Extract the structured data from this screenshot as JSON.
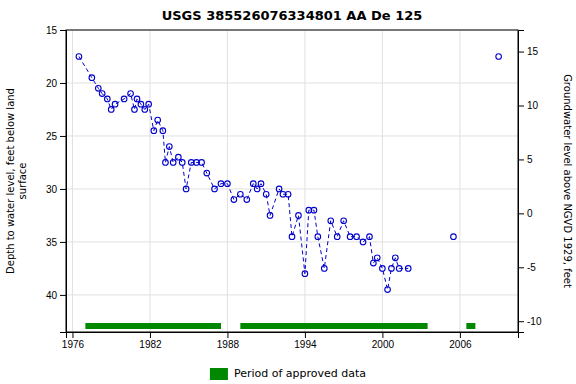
{
  "chart_data": {
    "type": "line",
    "title": "USGS 385526076334801 AA De 125",
    "ylabel": "Depth to water level, feet below land\nsurface",
    "y2label": "Groundwater level above NGVD 1929, feet",
    "xlim": [
      1975.5,
      2010.5
    ],
    "xticks": [
      1976,
      1982,
      1988,
      1994,
      2000,
      2006
    ],
    "ylim": [
      43.5,
      15.0
    ],
    "yticks": [
      15,
      20,
      25,
      30,
      35,
      40
    ],
    "y2lim": [
      -11.0,
      17.0
    ],
    "y2ticks": [
      15,
      10,
      5,
      0,
      -5,
      -10
    ],
    "grid": true,
    "series": [
      {
        "color": "#0000cc",
        "marker": "circle",
        "line_style": "dashed",
        "x": [
          1976.5,
          1977.5,
          1978.0,
          1978.3,
          1978.7,
          1979.0,
          1979.3,
          1980.0,
          1980.5,
          1980.8,
          1981.0,
          1981.3,
          1981.6,
          1981.9,
          1982.3,
          1982.6,
          1983.0,
          1983.2,
          1983.5,
          1983.8,
          1984.2,
          1984.5,
          1984.8,
          1985.2,
          1985.6,
          1986.0,
          1986.4,
          1987.0,
          1987.5,
          1988.0,
          1988.5,
          1989.0,
          1989.5,
          1990.0,
          1990.3,
          1990.6,
          1991.0,
          1991.3,
          1992.0,
          1992.3,
          1992.7,
          1993.0,
          1993.5,
          1994.0,
          1994.3,
          1994.7,
          1995.0,
          1995.5,
          1996.0,
          1996.5,
          1997.0,
          1997.5,
          1998.0,
          1998.5,
          1999.0,
          1999.3,
          1999.6,
          2000.0,
          2000.4,
          2000.7,
          2001.0,
          2001.3,
          2002.0
        ],
        "values": [
          17.5,
          19.5,
          20.5,
          21.0,
          21.5,
          22.5,
          22.0,
          21.5,
          21.0,
          22.5,
          21.5,
          22.0,
          22.5,
          22.0,
          24.5,
          23.5,
          24.5,
          27.5,
          26.0,
          27.5,
          27.0,
          27.5,
          30.0,
          27.5,
          27.5,
          27.5,
          28.5,
          30.0,
          29.5,
          29.5,
          31.0,
          30.5,
          31.0,
          29.5,
          30.0,
          29.5,
          30.5,
          32.5,
          30.0,
          30.5,
          30.5,
          34.5,
          32.5,
          38.0,
          32.0,
          32.0,
          34.5,
          37.5,
          33.0,
          34.5,
          33.0,
          34.5,
          34.5,
          35.0,
          34.5,
          37.0,
          36.5,
          37.5,
          39.5,
          37.5,
          36.5,
          37.5,
          37.5
        ]
      },
      {
        "color": "#0000cc",
        "marker": "circle",
        "line_style": "dashed",
        "x": [
          2005.5
        ],
        "values": [
          34.5
        ]
      },
      {
        "color": "#0000cc",
        "marker": "circle",
        "line_style": "dashed",
        "x": [
          2009.0
        ],
        "values": [
          17.5
        ]
      }
    ],
    "periods": {
      "name": "Period of approved data",
      "color": "#008800",
      "ranges": [
        [
          1977.0,
          1987.5
        ],
        [
          1989.0,
          2003.5
        ],
        [
          2006.5,
          2007.2
        ]
      ]
    }
  }
}
